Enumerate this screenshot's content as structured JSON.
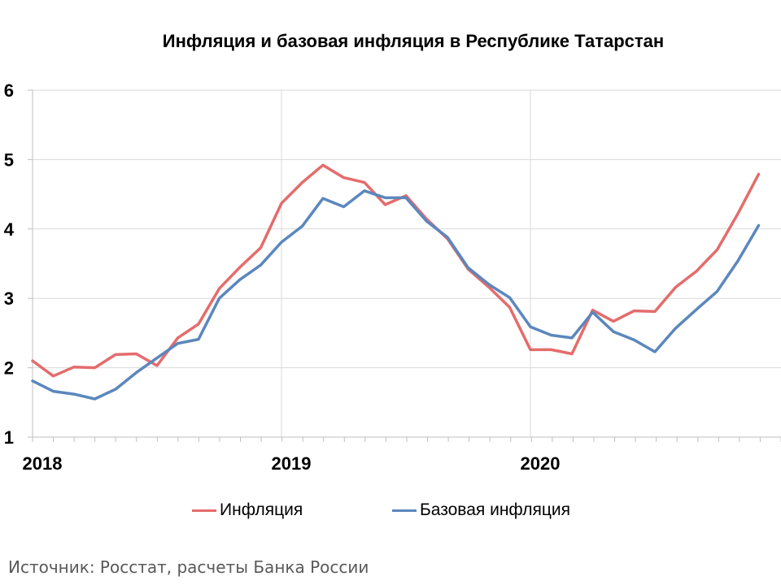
{
  "chart_data": {
    "type": "line",
    "title": "Инфляция и базовая инфляция в Республике Татарстан",
    "xlabel": "",
    "ylabel": "",
    "ylim": [
      1,
      6
    ],
    "yticks": [
      "1",
      "2",
      "3",
      "4",
      "5",
      "6"
    ],
    "xticks": [
      "2018",
      "2019",
      "2020"
    ],
    "grid": true,
    "legend": "bottom",
    "x": [
      "2018-01",
      "2018-02",
      "2018-03",
      "2018-04",
      "2018-05",
      "2018-06",
      "2018-07",
      "2018-08",
      "2018-09",
      "2018-10",
      "2018-11",
      "2018-12",
      "2019-01",
      "2019-02",
      "2019-03",
      "2019-04",
      "2019-05",
      "2019-06",
      "2019-07",
      "2019-08",
      "2019-09",
      "2019-10",
      "2019-11",
      "2019-12",
      "2020-01",
      "2020-02",
      "2020-03",
      "2020-04",
      "2020-05",
      "2020-06",
      "2020-07",
      "2020-08",
      "2020-09",
      "2020-10",
      "2020-11",
      "2020-12"
    ],
    "series": [
      {
        "name": "Инфляция",
        "color": "#E46C6C",
        "values": [
          2.1,
          1.88,
          2.01,
          2.0,
          2.19,
          2.2,
          2.03,
          2.43,
          2.63,
          3.14,
          3.45,
          3.73,
          4.37,
          4.67,
          4.92,
          4.74,
          4.67,
          4.35,
          4.48,
          4.14,
          3.86,
          3.42,
          3.16,
          2.87,
          2.26,
          2.26,
          2.2,
          2.83,
          2.67,
          2.82,
          2.81,
          3.16,
          3.39,
          3.7,
          4.22,
          4.79
        ]
      },
      {
        "name": "Базовая инфляция",
        "color": "#5B87BD",
        "values": [
          1.81,
          1.66,
          1.62,
          1.55,
          1.69,
          1.93,
          2.14,
          2.35,
          2.41,
          3.0,
          3.27,
          3.48,
          3.81,
          4.04,
          4.44,
          4.32,
          4.55,
          4.45,
          4.45,
          4.11,
          3.88,
          3.44,
          3.2,
          3.01,
          2.59,
          2.47,
          2.43,
          2.8,
          2.52,
          2.4,
          2.23,
          2.57,
          2.84,
          3.1,
          3.54,
          4.05
        ]
      }
    ]
  },
  "source_note": "Источник: Росстат, расчеты Банка России"
}
